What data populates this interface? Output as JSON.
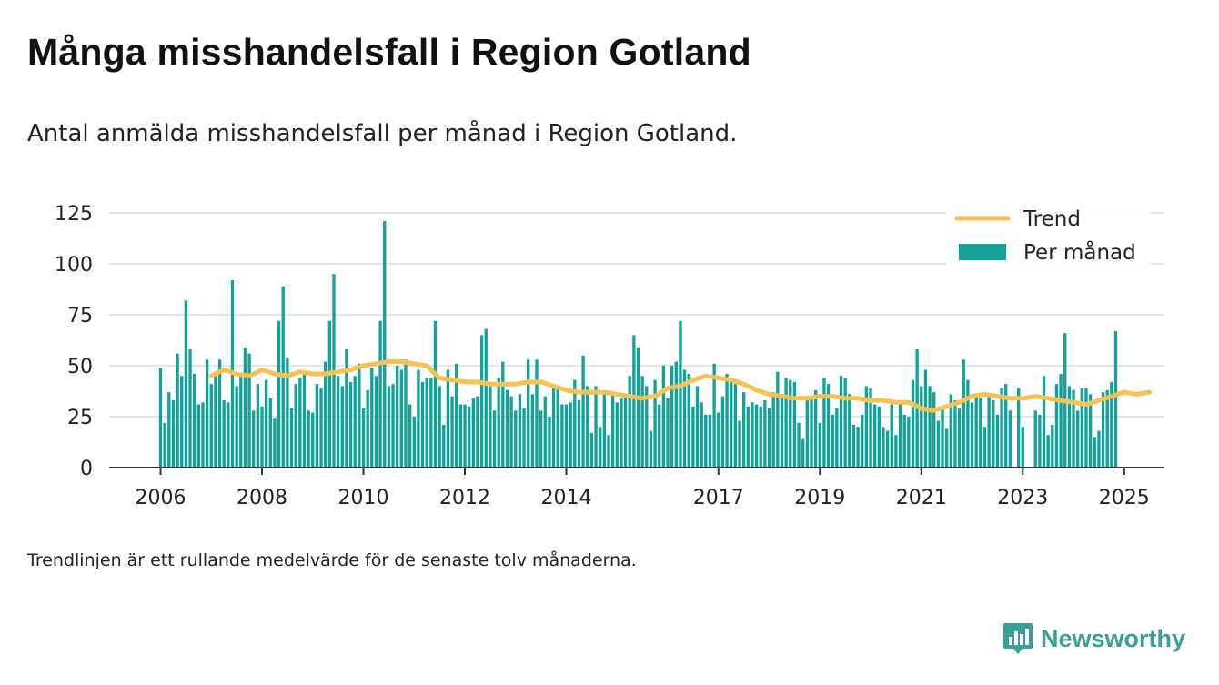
{
  "header": {
    "title": "Många misshandelsfall i Region Gotland",
    "subtitle": "Antal anmälda misshandelsfall per månad i Region Gotland."
  },
  "footer": {
    "note": "Trendlinjen är ett rullande medelvärde för de senaste tolv månaderna.",
    "brand": "Newsworthy",
    "brand_icon": "bar-chart-speech-icon"
  },
  "colors": {
    "bars": "#11a399",
    "trend": "#f6c155",
    "axis": "#333333",
    "grid": "#dddddd",
    "brand": "#3a9f96"
  },
  "chart_data": {
    "type": "bar",
    "title": "",
    "xlabel": "",
    "ylabel": "",
    "ylim": [
      0,
      125
    ],
    "yticks": [
      0,
      25,
      50,
      75,
      100,
      125
    ],
    "x_tick_labels": [
      "2006",
      "2008",
      "2010",
      "2012",
      "2014",
      "2017",
      "2019",
      "2021",
      "2023",
      "2025"
    ],
    "grid": true,
    "legend_position": "top-right",
    "series": [
      {
        "name": "Per månad",
        "kind": "bar",
        "start": "2006-01",
        "values": [
          49,
          22,
          37,
          33,
          56,
          45,
          82,
          58,
          46,
          31,
          32,
          53,
          41,
          46,
          53,
          33,
          32,
          92,
          40,
          45,
          59,
          56,
          28,
          41,
          30,
          43,
          34,
          24,
          72,
          89,
          54,
          29,
          41,
          44,
          47,
          28,
          27,
          41,
          39,
          52,
          72,
          95,
          45,
          40,
          58,
          42,
          45,
          51,
          29,
          38,
          49,
          45,
          72,
          121,
          40,
          41,
          50,
          48,
          53,
          31,
          25,
          48,
          42,
          44,
          44,
          72,
          40,
          21,
          48,
          35,
          51,
          31,
          31,
          30,
          34,
          35,
          65,
          68,
          40,
          28,
          44,
          52,
          38,
          35,
          28,
          36,
          29,
          53,
          36,
          53,
          28,
          35,
          25,
          39,
          40,
          31,
          31,
          32,
          43,
          33,
          55,
          40,
          17,
          40,
          20,
          37,
          16,
          36,
          32,
          34,
          36,
          45,
          65,
          59,
          45,
          40,
          18,
          43,
          31,
          50,
          34,
          50,
          52,
          72,
          48,
          46,
          30,
          40,
          32,
          26,
          26,
          51,
          27,
          35,
          46,
          43,
          41,
          23,
          37,
          30,
          32,
          31,
          30,
          33,
          29,
          37,
          47,
          36,
          44,
          43,
          42,
          22,
          14,
          35,
          35,
          38,
          22,
          44,
          41,
          26,
          29,
          45,
          44,
          36,
          21,
          20,
          26,
          40,
          39,
          31,
          30,
          20,
          18,
          31,
          16,
          33,
          26,
          25,
          43,
          58,
          40,
          48,
          40,
          37,
          23,
          29,
          19,
          36,
          33,
          29,
          53,
          43,
          32,
          36,
          34,
          20,
          35,
          33,
          26,
          39,
          41,
          28,
          0,
          39,
          20,
          0,
          0,
          28,
          26,
          45,
          16,
          21,
          41,
          46,
          66,
          40,
          38,
          28,
          39,
          39,
          36,
          15,
          18,
          37,
          38,
          42,
          67
        ]
      },
      {
        "name": "Trend",
        "kind": "line",
        "points": [
          [
            "2007-01",
            45
          ],
          [
            "2007-04",
            48
          ],
          [
            "2007-07",
            46
          ],
          [
            "2007-10",
            45
          ],
          [
            "2008-01",
            48
          ],
          [
            "2008-04",
            46
          ],
          [
            "2008-07",
            45
          ],
          [
            "2008-10",
            47
          ],
          [
            "2009-01",
            46
          ],
          [
            "2009-04",
            46
          ],
          [
            "2009-07",
            47
          ],
          [
            "2009-10",
            48
          ],
          [
            "2010-01",
            50
          ],
          [
            "2010-04",
            51
          ],
          [
            "2010-07",
            52
          ],
          [
            "2010-10",
            52
          ],
          [
            "2011-01",
            51
          ],
          [
            "2011-04",
            50
          ],
          [
            "2011-07",
            44
          ],
          [
            "2011-10",
            43
          ],
          [
            "2012-01",
            42
          ],
          [
            "2012-04",
            42
          ],
          [
            "2012-07",
            41
          ],
          [
            "2012-10",
            41
          ],
          [
            "2013-01",
            41
          ],
          [
            "2013-04",
            42
          ],
          [
            "2013-07",
            42
          ],
          [
            "2013-10",
            40
          ],
          [
            "2014-01",
            38
          ],
          [
            "2014-04",
            37
          ],
          [
            "2014-07",
            37
          ],
          [
            "2014-10",
            37
          ],
          [
            "2015-01",
            36
          ],
          [
            "2015-04",
            35
          ],
          [
            "2015-07",
            34
          ],
          [
            "2015-10",
            35
          ],
          [
            "2016-01",
            39
          ],
          [
            "2016-04",
            40
          ],
          [
            "2016-07",
            43
          ],
          [
            "2016-10",
            45
          ],
          [
            "2017-01",
            44
          ],
          [
            "2017-04",
            43
          ],
          [
            "2017-07",
            41
          ],
          [
            "2017-10",
            38
          ],
          [
            "2018-01",
            36
          ],
          [
            "2018-04",
            35
          ],
          [
            "2018-07",
            34
          ],
          [
            "2018-10",
            34
          ],
          [
            "2019-01",
            35
          ],
          [
            "2019-04",
            35
          ],
          [
            "2019-07",
            34
          ],
          [
            "2019-10",
            34
          ],
          [
            "2020-01",
            33
          ],
          [
            "2020-04",
            33
          ],
          [
            "2020-07",
            32
          ],
          [
            "2020-10",
            32
          ],
          [
            "2021-01",
            29
          ],
          [
            "2021-04",
            28
          ],
          [
            "2021-07",
            30
          ],
          [
            "2021-10",
            32
          ],
          [
            "2022-01",
            35
          ],
          [
            "2022-04",
            36
          ],
          [
            "2022-07",
            35
          ],
          [
            "2022-10",
            34
          ],
          [
            "2023-01",
            34
          ],
          [
            "2023-04",
            35
          ],
          [
            "2023-07",
            34
          ],
          [
            "2023-10",
            33
          ],
          [
            "2024-01",
            32
          ],
          [
            "2024-04",
            31
          ],
          [
            "2024-07",
            33
          ],
          [
            "2024-10",
            35
          ],
          [
            "2025-01",
            37
          ],
          [
            "2025-04",
            36
          ],
          [
            "2025-07",
            37
          ]
        ]
      }
    ]
  }
}
